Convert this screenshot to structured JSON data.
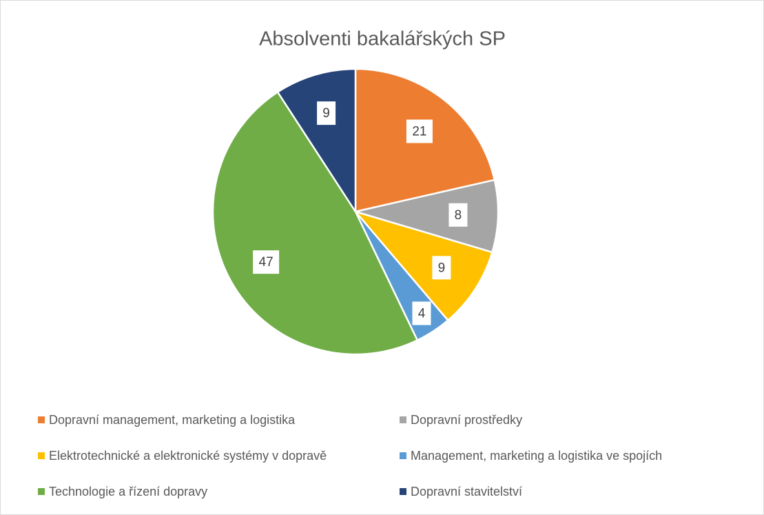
{
  "chart_data": {
    "type": "pie",
    "title": "Absolventi bakalářských SP",
    "categories": [
      "Dopravní management, marketing a logistika",
      "Dopravní prostředky",
      "Elektrotechnické a elektronické systémy v dopravě",
      "Management, marketing a logistika ve spojích",
      "Technologie a řízení dopravy",
      "Dopravní stavitelství"
    ],
    "values": [
      21,
      8,
      9,
      4,
      47,
      9
    ],
    "colors": [
      "#ed7d31",
      "#a5a5a5",
      "#ffc000",
      "#5b9bd5",
      "#70ad47",
      "#264478"
    ],
    "legend": "bottom"
  }
}
